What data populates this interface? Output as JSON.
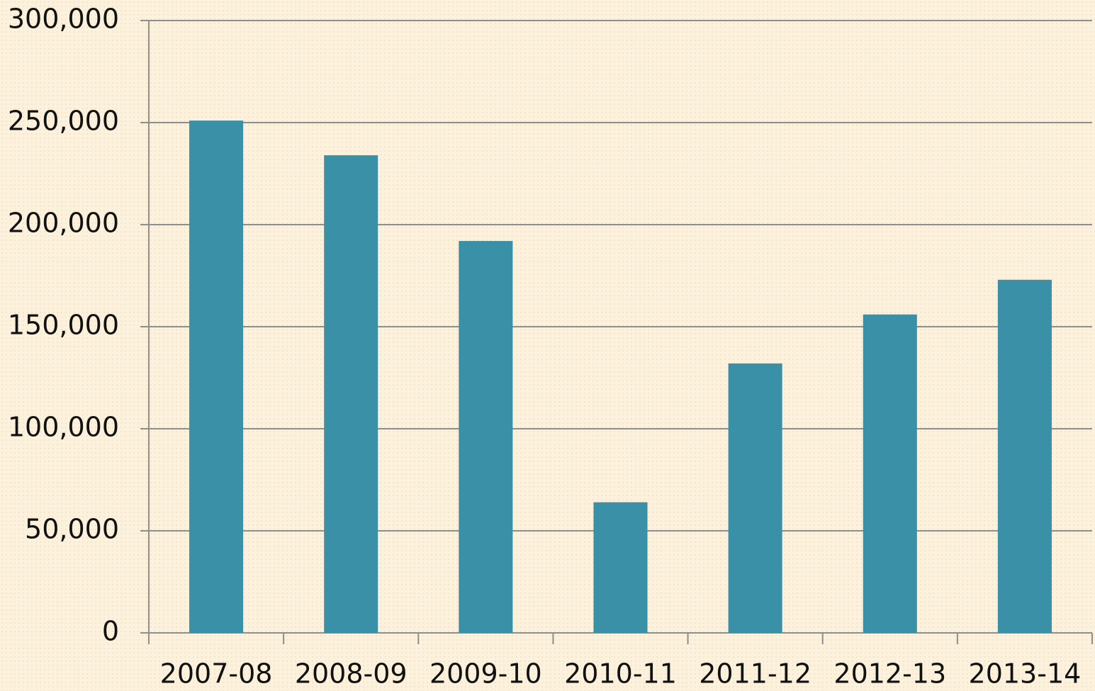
{
  "chart_data": {
    "type": "bar",
    "categories": [
      "2007-08",
      "2008-09",
      "2009-10",
      "2010-11",
      "2011-12",
      "2012-13",
      "2013-14"
    ],
    "values": [
      251000,
      234000,
      192000,
      64000,
      132000,
      156000,
      173000
    ],
    "color": "#3a90a7",
    "ylim": [
      0,
      300000
    ],
    "yticks": [
      {
        "value": 0,
        "label": "0"
      },
      {
        "value": 50000,
        "label": "50,000"
      },
      {
        "value": 100000,
        "label": "100,000"
      },
      {
        "value": 150000,
        "label": "150,000"
      },
      {
        "value": 200000,
        "label": "200,000"
      },
      {
        "value": 250000,
        "label": "250,000"
      },
      {
        "value": 300000,
        "label": "300,000"
      }
    ],
    "grid": true
  }
}
